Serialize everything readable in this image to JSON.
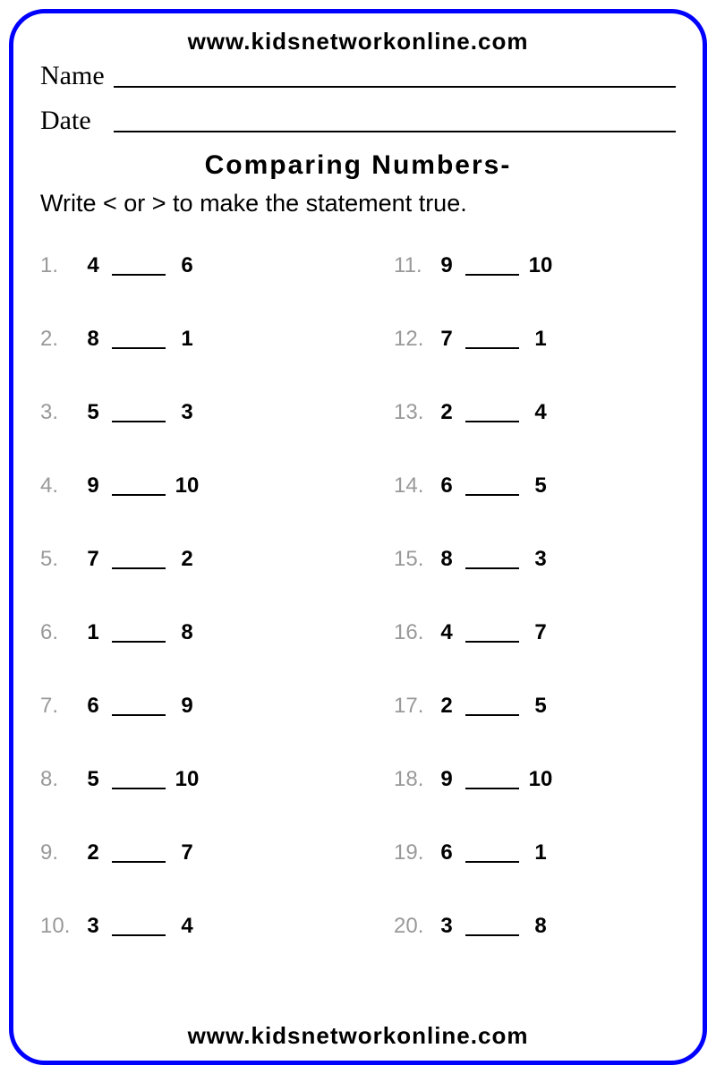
{
  "header": {
    "url_top": "www.kidsnetworkonline.com",
    "name_label": "Name",
    "date_label": "Date",
    "title": "Comparing Numbers-",
    "instruction": "Write < or > to make the statement true."
  },
  "footer": {
    "url_bottom": "www.kidsnetworkonline.com"
  },
  "styling": {
    "border_color": "#0000ff",
    "border_width": 5,
    "border_radius": 40,
    "number_color": "#999999",
    "text_color": "#000000",
    "background": "#ffffff",
    "title_fontsize": 30,
    "instruction_fontsize": 27,
    "question_fontsize": 24,
    "url_fontsize": 26
  },
  "questions": {
    "left": [
      {
        "n": "1.",
        "a": "4",
        "b": "6"
      },
      {
        "n": "2.",
        "a": "8",
        "b": "1"
      },
      {
        "n": "3.",
        "a": "5",
        "b": "3"
      },
      {
        "n": "4.",
        "a": "9",
        "b": "10"
      },
      {
        "n": "5.",
        "a": "7",
        "b": "2"
      },
      {
        "n": "6.",
        "a": "1",
        "b": "8"
      },
      {
        "n": "7.",
        "a": "6",
        "b": "9"
      },
      {
        "n": "8.",
        "a": "5",
        "b": "10"
      },
      {
        "n": "9.",
        "a": "2",
        "b": "7"
      },
      {
        "n": "10.",
        "a": "3",
        "b": "4"
      }
    ],
    "right": [
      {
        "n": "11.",
        "a": "9",
        "b": "10"
      },
      {
        "n": "12.",
        "a": "7",
        "b": "1"
      },
      {
        "n": "13.",
        "a": "2",
        "b": "4"
      },
      {
        "n": "14.",
        "a": "6",
        "b": "5"
      },
      {
        "n": "15.",
        "a": "8",
        "b": "3"
      },
      {
        "n": "16.",
        "a": "4",
        "b": "7"
      },
      {
        "n": "17.",
        "a": "2",
        "b": "5"
      },
      {
        "n": "18.",
        "a": "9",
        "b": "10"
      },
      {
        "n": "19.",
        "a": "6",
        "b": "1"
      },
      {
        "n": "20.",
        "a": "3",
        "b": "8"
      }
    ]
  }
}
